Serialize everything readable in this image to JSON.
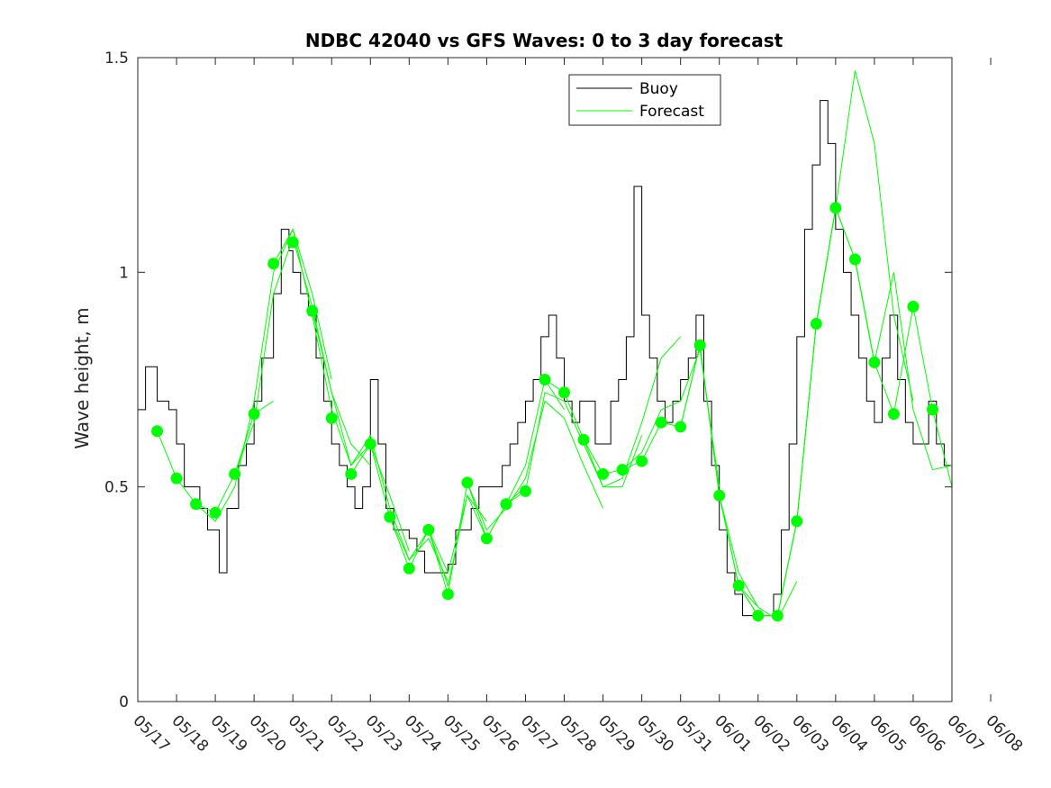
{
  "chart_data": {
    "type": "line",
    "title": "NDBC 42040 vs GFS Waves: 0 to 3 day forecast",
    "xlabel": "",
    "ylabel": "Wave height, m",
    "ylim": [
      0,
      1.5
    ],
    "yticks": [
      0,
      0.5,
      1,
      1.5
    ],
    "ytick_labels": [
      "0",
      "0.5",
      "1",
      "1.5"
    ],
    "xlim": [
      0,
      21
    ],
    "xtick_labels": [
      "05/17",
      "05/18",
      "05/19",
      "05/20",
      "05/21",
      "05/22",
      "05/23",
      "05/24",
      "05/25",
      "05/26",
      "05/27",
      "05/28",
      "05/29",
      "05/30",
      "05/31",
      "06/01",
      "06/02",
      "06/03",
      "06/04",
      "06/05",
      "06/06",
      "06/07",
      "06/08"
    ],
    "legend": {
      "position": "top-center",
      "entries": [
        "Buoy",
        "Forecast"
      ]
    },
    "grid": false,
    "colors": {
      "buoy": "#000000",
      "forecast": "#00ff00",
      "axes": "#262626"
    },
    "series": [
      {
        "name": "Buoy",
        "x": [
          0,
          0.2,
          0.5,
          0.8,
          1.0,
          1.2,
          1.4,
          1.6,
          1.8,
          2.0,
          2.1,
          2.3,
          2.6,
          2.8,
          3.0,
          3.2,
          3.5,
          3.7,
          3.9,
          4.0,
          4.2,
          4.4,
          4.6,
          4.8,
          5.0,
          5.2,
          5.4,
          5.6,
          5.8,
          6.0,
          6.2,
          6.4,
          6.6,
          6.8,
          7.0,
          7.2,
          7.4,
          7.6,
          7.8,
          8.0,
          8.2,
          8.4,
          8.6,
          8.8,
          9.0,
          9.2,
          9.4,
          9.6,
          9.8,
          10.0,
          10.2,
          10.4,
          10.6,
          10.8,
          11.0,
          11.2,
          11.4,
          11.6,
          11.8,
          12.0,
          12.2,
          12.4,
          12.6,
          12.8,
          13.0,
          13.2,
          13.4,
          13.6,
          13.8,
          14.0,
          14.2,
          14.4,
          14.6,
          14.8,
          15.0,
          15.2,
          15.4,
          15.6,
          15.8,
          16.0,
          16.2,
          16.4,
          16.6,
          16.8,
          17.0,
          17.2,
          17.4,
          17.6,
          17.8,
          18.0,
          18.2,
          18.4,
          18.6,
          18.8,
          19.0,
          19.2,
          19.4,
          19.6,
          19.8,
          20.0,
          20.2,
          20.4,
          20.6,
          20.8,
          21.0
        ],
        "values": [
          0.68,
          0.78,
          0.7,
          0.68,
          0.6,
          0.5,
          0.5,
          0.45,
          0.4,
          0.4,
          0.3,
          0.45,
          0.55,
          0.6,
          0.7,
          0.8,
          0.95,
          1.1,
          1.05,
          1.0,
          0.95,
          0.9,
          0.8,
          0.7,
          0.6,
          0.55,
          0.5,
          0.45,
          0.5,
          0.75,
          0.6,
          0.45,
          0.4,
          0.4,
          0.38,
          0.35,
          0.3,
          0.3,
          0.3,
          0.32,
          0.4,
          0.4,
          0.45,
          0.5,
          0.5,
          0.5,
          0.55,
          0.6,
          0.65,
          0.7,
          0.75,
          0.85,
          0.9,
          0.8,
          0.7,
          0.65,
          0.7,
          0.7,
          0.6,
          0.6,
          0.7,
          0.75,
          0.85,
          1.2,
          0.9,
          0.8,
          0.7,
          0.65,
          0.7,
          0.75,
          0.8,
          0.9,
          0.7,
          0.55,
          0.4,
          0.3,
          0.25,
          0.2,
          0.2,
          0.2,
          0.2,
          0.25,
          0.4,
          0.6,
          0.85,
          1.1,
          1.25,
          1.4,
          1.3,
          1.1,
          1.0,
          0.9,
          0.8,
          0.7,
          0.65,
          0.8,
          0.9,
          0.75,
          0.65,
          0.6,
          0.6,
          0.7,
          0.6,
          0.55,
          0.5
        ]
      },
      {
        "name": "Forecast",
        "values_note": "",
        "runs": [
          {
            "x": [
              0.5,
              1.0,
              1.5,
              2.0,
              2.5,
              3.0,
              3.5
            ],
            "y": [
              0.63,
              0.52,
              0.46,
              0.44,
              0.53,
              0.67,
              0.7
            ]
          },
          {
            "x": [
              1.5,
              2.0,
              2.5,
              3.0,
              3.5,
              4.0,
              4.5,
              5.0
            ],
            "y": [
              0.46,
              0.42,
              0.5,
              0.7,
              1.0,
              1.1,
              0.95,
              0.75
            ]
          },
          {
            "x": [
              2.5,
              3.0,
              3.5,
              4.0,
              4.5,
              5.0,
              5.5,
              6.0
            ],
            "y": [
              0.53,
              0.65,
              0.95,
              1.08,
              0.92,
              0.72,
              0.6,
              0.55
            ]
          },
          {
            "x": [
              3.5,
              4.0,
              4.5,
              5.0,
              5.5,
              6.0,
              6.5,
              7.0
            ],
            "y": [
              1.02,
              1.1,
              0.9,
              0.68,
              0.55,
              0.6,
              0.48,
              0.35
            ]
          },
          {
            "x": [
              4.5,
              5.0,
              5.5,
              6.0,
              6.5,
              7.0,
              7.5,
              8.0
            ],
            "y": [
              0.91,
              0.72,
              0.55,
              0.62,
              0.45,
              0.33,
              0.38,
              0.28
            ]
          },
          {
            "x": [
              5.5,
              6.0,
              6.5,
              7.0,
              7.5,
              8.0,
              8.5,
              9.0
            ],
            "y": [
              0.53,
              0.6,
              0.43,
              0.33,
              0.4,
              0.27,
              0.48,
              0.42
            ]
          },
          {
            "x": [
              6.5,
              7.0,
              7.5,
              8.0,
              8.5,
              9.0,
              9.5,
              10.0
            ],
            "y": [
              0.43,
              0.31,
              0.4,
              0.25,
              0.51,
              0.38,
              0.46,
              0.5
            ]
          },
          {
            "x": [
              7.5,
              8.0,
              8.5,
              9.0,
              9.5,
              10.0,
              10.5,
              11.0
            ],
            "y": [
              0.4,
              0.3,
              0.48,
              0.38,
              0.46,
              0.55,
              0.75,
              0.68
            ]
          },
          {
            "x": [
              8.5,
              9.0,
              9.5,
              10.0,
              10.5,
              11.0,
              11.5,
              12.0
            ],
            "y": [
              0.51,
              0.4,
              0.45,
              0.52,
              0.7,
              0.66,
              0.55,
              0.45
            ]
          },
          {
            "x": [
              9.5,
              10.0,
              10.5,
              11.0,
              11.5,
              12.0,
              12.5,
              13.0
            ],
            "y": [
              0.46,
              0.49,
              0.72,
              0.7,
              0.6,
              0.5,
              0.5,
              0.62
            ]
          },
          {
            "x": [
              10.5,
              11.0,
              11.5,
              12.0,
              12.5,
              13.0,
              13.5,
              14.0
            ],
            "y": [
              0.75,
              0.72,
              0.61,
              0.5,
              0.52,
              0.65,
              0.8,
              0.85
            ]
          },
          {
            "x": [
              11.5,
              12.0,
              12.5,
              13.0,
              13.5,
              14.0,
              14.5,
              15.0
            ],
            "y": [
              0.61,
              0.53,
              0.54,
              0.58,
              0.68,
              0.7,
              0.82,
              0.5
            ]
          },
          {
            "x": [
              12.5,
              13.0,
              13.5,
              14.0,
              14.5,
              15.0,
              15.5,
              16.0
            ],
            "y": [
              0.54,
              0.56,
              0.65,
              0.64,
              0.83,
              0.48,
              0.27,
              0.22
            ]
          },
          {
            "x": [
              13.5,
              14.0,
              14.5,
              15.0,
              15.5,
              16.0,
              16.5,
              17.0
            ],
            "y": [
              0.65,
              0.64,
              0.83,
              0.48,
              0.3,
              0.22,
              0.19,
              0.28
            ]
          },
          {
            "x": [
              14.5,
              15.0,
              15.5,
              16.0,
              16.5,
              17.0,
              17.5,
              18.0
            ],
            "y": [
              0.83,
              0.48,
              0.27,
              0.2,
              0.2,
              0.42,
              0.88,
              1.15
            ]
          },
          {
            "x": [
              15.5,
              16.0,
              16.5,
              17.0,
              17.5,
              18.0,
              18.5,
              19.0
            ],
            "y": [
              0.27,
              0.2,
              0.2,
              0.42,
              0.88,
              1.15,
              1.03,
              0.79
            ]
          },
          {
            "x": [
              16.5,
              17.0,
              17.5,
              18.0,
              18.5,
              19.0,
              19.5,
              20.0
            ],
            "y": [
              0.2,
              0.42,
              0.88,
              1.15,
              1.47,
              1.3,
              0.9,
              0.7
            ]
          },
          {
            "x": [
              17.5,
              18.0,
              18.5,
              19.0,
              19.5,
              20.0,
              20.5,
              21.0
            ],
            "y": [
              0.88,
              1.15,
              1.03,
              0.79,
              1.0,
              0.68,
              0.54,
              0.55
            ]
          },
          {
            "x": [
              18.5,
              19.0,
              19.5,
              20.0,
              20.5,
              21.0
            ],
            "y": [
              1.03,
              0.79,
              0.67,
              0.92,
              0.68,
              0.5
            ]
          }
        ],
        "markers": {
          "x": [
            0.5,
            1.0,
            1.5,
            2.0,
            2.5,
            3.0,
            3.5,
            4.0,
            4.5,
            5.0,
            5.5,
            6.0,
            6.5,
            7.0,
            7.5,
            8.0,
            8.5,
            9.0,
            9.5,
            10.0,
            10.5,
            11.0,
            11.5,
            12.0,
            12.5,
            13.0,
            13.5,
            14.0,
            14.5,
            15.0,
            15.5,
            16.0,
            16.5,
            17.0,
            17.5,
            18.0,
            18.5,
            19.0,
            19.5,
            20.0,
            20.5
          ],
          "y": [
            0.63,
            0.52,
            0.46,
            0.44,
            0.53,
            0.67,
            1.02,
            1.07,
            0.91,
            0.66,
            0.53,
            0.6,
            0.43,
            0.31,
            0.4,
            0.25,
            0.51,
            0.38,
            0.46,
            0.49,
            0.75,
            0.72,
            0.61,
            0.53,
            0.54,
            0.56,
            0.65,
            0.64,
            0.83,
            0.48,
            0.27,
            0.2,
            0.2,
            0.42,
            0.88,
            1.15,
            1.03,
            0.79,
            0.67,
            0.92,
            0.68
          ]
        }
      }
    ]
  }
}
